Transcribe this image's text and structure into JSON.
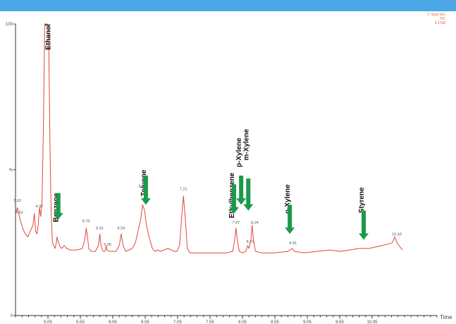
{
  "header": {
    "lines": [
      "1: Scan EI+",
      "TIC",
      "3.17e8"
    ]
  },
  "chart_data": {
    "type": "line",
    "xlabel": "Time",
    "ylabel": "%",
    "xlim": [
      4.55,
      11.05
    ],
    "ylim": [
      0,
      100
    ],
    "y_ticks": [
      {
        "value": 0,
        "label": "0"
      },
      {
        "value": 50,
        "label": "%"
      },
      {
        "value": 100,
        "label": "100"
      }
    ],
    "x_tick_labels": [
      {
        "value": 5.05,
        "label": "5.05"
      },
      {
        "value": 5.55,
        "label": "5.55"
      },
      {
        "value": 6.05,
        "label": "6.05"
      },
      {
        "value": 6.55,
        "label": "6.55"
      },
      {
        "value": 7.05,
        "label": "7.05"
      },
      {
        "value": 7.55,
        "label": "7.55"
      },
      {
        "value": 8.05,
        "label": "8.05"
      },
      {
        "value": 8.55,
        "label": "8.55"
      },
      {
        "value": 9.05,
        "label": "9.05"
      },
      {
        "value": 9.55,
        "label": "9.55"
      },
      {
        "value": 10.05,
        "label": "10.05"
      }
    ],
    "x_minor_step": 0.1,
    "series": [
      {
        "color": "#e0463a",
        "points": [
          [
            4.55,
            35
          ],
          [
            4.58,
            37
          ],
          [
            4.62,
            33
          ],
          [
            4.66,
            30
          ],
          [
            4.7,
            28
          ],
          [
            4.74,
            27
          ],
          [
            4.78,
            29
          ],
          [
            4.82,
            31
          ],
          [
            4.84,
            35
          ],
          [
            4.86,
            29
          ],
          [
            4.88,
            28
          ],
          [
            4.9,
            31
          ],
          [
            4.92,
            37
          ],
          [
            4.94,
            34
          ],
          [
            4.96,
            40
          ],
          [
            4.98,
            65
          ],
          [
            5.0,
            100
          ],
          [
            5.02,
            100
          ],
          [
            5.04,
            100
          ],
          [
            5.06,
            99
          ],
          [
            5.08,
            60
          ],
          [
            5.1,
            35
          ],
          [
            5.12,
            25
          ],
          [
            5.14,
            24
          ],
          [
            5.16,
            23
          ],
          [
            5.18,
            25
          ],
          [
            5.19,
            27
          ],
          [
            5.2,
            26
          ],
          [
            5.23,
            24
          ],
          [
            5.26,
            23
          ],
          [
            5.3,
            24
          ],
          [
            5.34,
            23
          ],
          [
            5.4,
            22.5
          ],
          [
            5.5,
            22.5
          ],
          [
            5.58,
            23
          ],
          [
            5.62,
            26
          ],
          [
            5.64,
            30
          ],
          [
            5.66,
            27
          ],
          [
            5.68,
            23
          ],
          [
            5.72,
            22
          ],
          [
            5.78,
            22
          ],
          [
            5.83,
            24
          ],
          [
            5.85,
            28
          ],
          [
            5.87,
            24
          ],
          [
            5.9,
            22
          ],
          [
            5.93,
            22
          ],
          [
            5.95,
            24
          ],
          [
            5.96,
            22.5
          ],
          [
            6.0,
            22
          ],
          [
            6.1,
            22
          ],
          [
            6.15,
            24
          ],
          [
            6.18,
            28
          ],
          [
            6.21,
            24
          ],
          [
            6.25,
            22
          ],
          [
            6.35,
            23
          ],
          [
            6.4,
            25
          ],
          [
            6.44,
            29
          ],
          [
            6.48,
            33
          ],
          [
            6.51,
            38
          ],
          [
            6.54,
            36
          ],
          [
            6.57,
            31
          ],
          [
            6.61,
            27
          ],
          [
            6.66,
            23
          ],
          [
            6.7,
            22
          ],
          [
            6.74,
            22.5
          ],
          [
            6.78,
            22
          ],
          [
            6.84,
            22.5
          ],
          [
            6.9,
            23
          ],
          [
            7.0,
            22
          ],
          [
            7.04,
            22
          ],
          [
            7.08,
            24
          ],
          [
            7.11,
            33
          ],
          [
            7.14,
            41
          ],
          [
            7.17,
            33
          ],
          [
            7.2,
            23
          ],
          [
            7.24,
            21.5
          ],
          [
            7.4,
            21.5
          ],
          [
            7.6,
            21.5
          ],
          [
            7.8,
            21.5
          ],
          [
            7.9,
            22
          ],
          [
            7.93,
            26
          ],
          [
            7.95,
            30
          ],
          [
            7.97,
            26
          ],
          [
            8.0,
            22
          ],
          [
            8.05,
            21.5
          ],
          [
            8.1,
            22
          ],
          [
            8.13,
            24
          ],
          [
            8.15,
            23
          ],
          [
            8.18,
            26
          ],
          [
            8.2,
            31
          ],
          [
            8.22,
            26
          ],
          [
            8.25,
            22
          ],
          [
            8.35,
            21.5
          ],
          [
            8.55,
            21.5
          ],
          [
            8.75,
            22
          ],
          [
            8.82,
            23
          ],
          [
            8.85,
            22
          ],
          [
            9.0,
            21.5
          ],
          [
            9.2,
            22
          ],
          [
            9.4,
            22.5
          ],
          [
            9.55,
            22
          ],
          [
            9.7,
            22.5
          ],
          [
            9.85,
            23
          ],
          [
            9.95,
            23
          ],
          [
            10.0,
            23
          ],
          [
            10.1,
            23.5
          ],
          [
            10.2,
            24
          ],
          [
            10.3,
            24.5
          ],
          [
            10.36,
            25
          ],
          [
            10.4,
            27
          ],
          [
            10.43,
            25
          ],
          [
            10.5,
            23
          ],
          [
            10.52,
            22.5
          ]
        ]
      }
    ],
    "peak_labels": [
      {
        "x": 4.58,
        "y": 39,
        "label": "5.62"
      },
      {
        "x": 4.61,
        "y": 35,
        "label": "4.62"
      },
      {
        "x": 4.92,
        "y": 37,
        "label": "4.97"
      },
      {
        "x": 5.64,
        "y": 32,
        "label": "5.70"
      },
      {
        "x": 5.85,
        "y": 29.5,
        "label": "5.91"
      },
      {
        "x": 5.97,
        "y": 24,
        "label": "5.96"
      },
      {
        "x": 6.18,
        "y": 29.5,
        "label": "6.29"
      },
      {
        "x": 6.49,
        "y": 44,
        "label": "6.5"
      },
      {
        "x": 7.14,
        "y": 43,
        "label": "7.21"
      },
      {
        "x": 7.95,
        "y": 31.5,
        "label": "7.97"
      },
      {
        "x": 8.17,
        "y": 25,
        "label": "8.21"
      },
      {
        "x": 8.24,
        "y": 31.5,
        "label": "8.24"
      },
      {
        "x": 8.83,
        "y": 24.5,
        "label": "8.91"
      },
      {
        "x": 10.43,
        "y": 27.5,
        "label": "10.43"
      }
    ],
    "annotations": [
      {
        "label": "Ethanol",
        "x": 5.09,
        "y": 100,
        "arrow": false
      },
      {
        "label": "Benzene",
        "x": 5.21,
        "y": 42,
        "arrow": true,
        "arrow_top": 42,
        "arrow_bottom": 33
      },
      {
        "label": "Toluene",
        "x": 6.56,
        "y": 50,
        "arrow": true,
        "arrow_top": 48,
        "arrow_bottom": 38
      },
      {
        "label": "Ethylbenzene",
        "x": 7.92,
        "y": 49,
        "arrow": true,
        "arrow_top": 45,
        "arrow_bottom": 35
      },
      {
        "label": "p-Xylene",
        "x": 8.03,
        "y": 61,
        "arrow": true,
        "arrow_top": 48,
        "arrow_bottom": 38
      },
      {
        "label": "m-Xylene",
        "x": 8.14,
        "y": 64,
        "arrow": true,
        "arrow_top": 47,
        "arrow_bottom": 36
      },
      {
        "label": "o-Xylene",
        "x": 8.78,
        "y": 45,
        "arrow": true,
        "arrow_top": 38,
        "arrow_bottom": 28
      },
      {
        "label": "Styrene",
        "x": 9.92,
        "y": 44,
        "arrow": true,
        "arrow_top": 36,
        "arrow_bottom": 26
      }
    ]
  }
}
